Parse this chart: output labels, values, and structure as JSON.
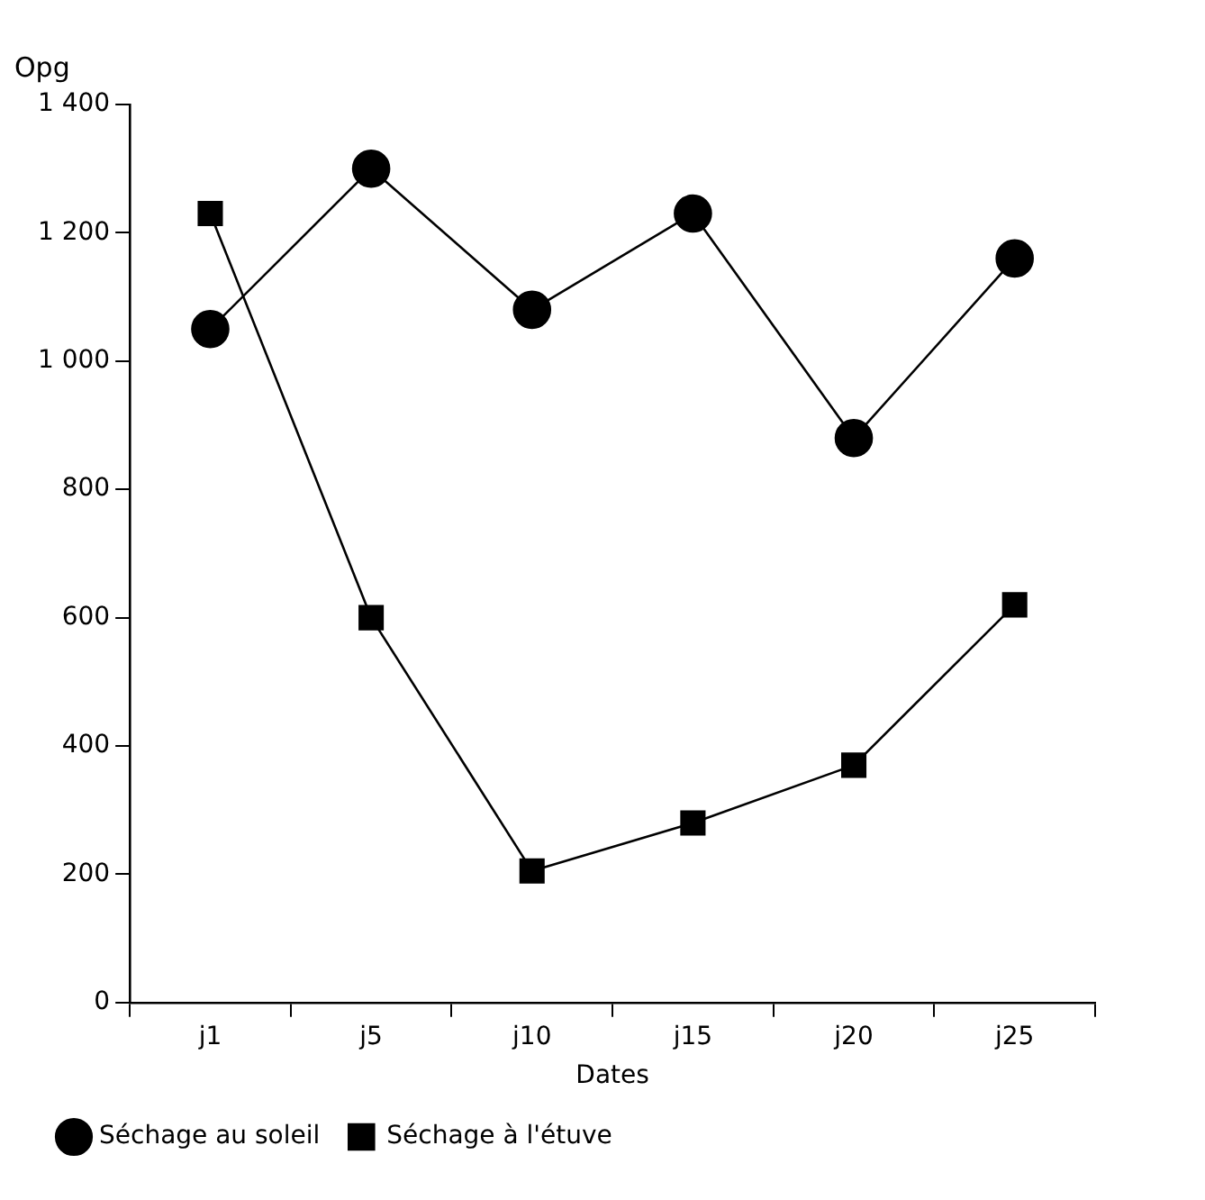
{
  "chart_data": {
    "type": "line",
    "xlabel": "Dates",
    "ylabel": "Opg",
    "categories": [
      "j1",
      "j5",
      "j10",
      "j15",
      "j20",
      "j25"
    ],
    "series": [
      {
        "name": "Séchage au soleil",
        "color": "#000000",
        "marker": "circle",
        "values": [
          1050,
          1300,
          1080,
          1230,
          880,
          1160
        ]
      },
      {
        "name": "Séchage à l'étuve",
        "color": "#000000",
        "marker": "square",
        "values": [
          1230,
          600,
          205,
          280,
          370,
          620
        ]
      }
    ],
    "ylim": [
      0,
      1400
    ],
    "yticks": [
      0,
      200,
      400,
      600,
      800,
      {
        "value": 1000,
        "label": "1 000"
      },
      {
        "value": 1200,
        "label": "1 200"
      },
      {
        "value": 1400,
        "label": "1 400"
      }
    ],
    "grid": false,
    "legend": "bottom left",
    "line_style": "solid"
  }
}
